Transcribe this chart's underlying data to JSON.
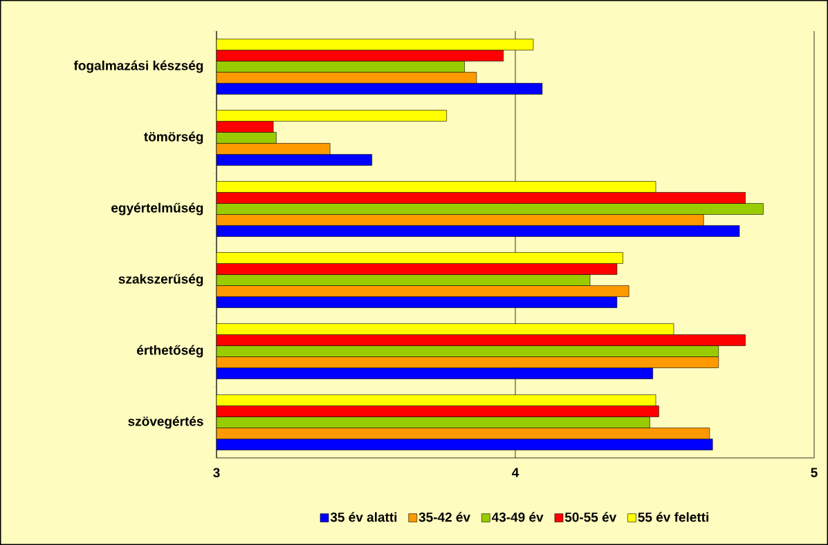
{
  "chart_data": {
    "type": "bar",
    "orientation": "horizontal",
    "categories": [
      "fogalmazási készség",
      "tömörség",
      "egyértelműség",
      "szakszerűség",
      "érthetőség",
      "szövegértés"
    ],
    "series": [
      {
        "name": "35 év alatti",
        "color": "#0000ff",
        "values": [
          4.09,
          3.52,
          4.75,
          4.34,
          4.46,
          4.66
        ]
      },
      {
        "name": "35-42 év",
        "color": "#ff9900",
        "values": [
          3.87,
          3.38,
          4.63,
          4.38,
          4.68,
          4.65
        ]
      },
      {
        "name": "43-49 év",
        "color": "#99cc00",
        "values": [
          3.83,
          3.2,
          4.83,
          4.25,
          4.68,
          4.45
        ]
      },
      {
        "name": "50-55 év",
        "color": "#ff0000",
        "values": [
          3.96,
          3.19,
          4.77,
          4.34,
          4.77,
          4.48
        ]
      },
      {
        "name": "55 év feletti",
        "color": "#ffff00",
        "values": [
          4.06,
          3.77,
          4.47,
          4.36,
          4.53,
          4.47
        ]
      }
    ],
    "xlim": [
      3,
      5
    ],
    "xticks": [
      3,
      4,
      5
    ],
    "grid": "x",
    "legend": "bottom"
  }
}
